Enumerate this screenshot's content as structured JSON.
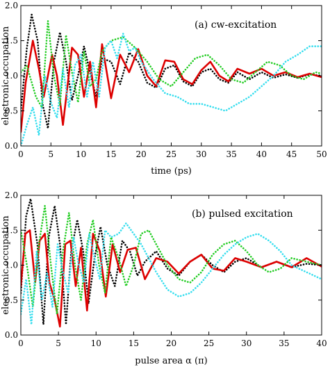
{
  "chart_data": [
    {
      "type": "line",
      "title": "(a) cw-excitation",
      "xlabel": "time (ps)",
      "ylabel": "electronic occupation",
      "xlim": [
        0,
        50
      ],
      "ylim": [
        0,
        2
      ],
      "xticks": [
        0,
        5,
        10,
        15,
        20,
        25,
        30,
        35,
        40,
        45,
        50
      ],
      "yticks": [
        0.0,
        0.5,
        1.0,
        1.5,
        2.0
      ],
      "ytick_labels": [
        "0.0",
        "0.5",
        "1.0",
        "1.5",
        "2.0"
      ],
      "grid": false,
      "legend": null,
      "series": [
        {
          "color": "#000000",
          "style": "dotted",
          "x": [
            0,
            1,
            1.8,
            2.8,
            3.6,
            4.5,
            5.5,
            6.5,
            7.5,
            8.5,
            9.5,
            10.5,
            11.5,
            12.5,
            13.5,
            15,
            16.5,
            18,
            19.5,
            21,
            22.5,
            24,
            25.5,
            27,
            28.5,
            30,
            31.5,
            33,
            34.5,
            36,
            38,
            40,
            42,
            44,
            46,
            48,
            50
          ],
          "y": [
            0.5,
            1.4,
            1.87,
            1.5,
            0.6,
            0.25,
            1.2,
            1.62,
            1.2,
            0.65,
            1.0,
            1.42,
            1.05,
            0.7,
            1.25,
            1.2,
            0.88,
            1.33,
            1.2,
            0.9,
            0.83,
            1.1,
            1.15,
            0.92,
            0.85,
            1.05,
            1.1,
            0.95,
            0.9,
            1.05,
            0.95,
            1.05,
            0.97,
            1.02,
            0.97,
            1.02,
            1.0
          ]
        },
        {
          "color": "#dd0000",
          "style": "solid",
          "x": [
            0,
            0.8,
            2,
            3,
            3.8,
            5.2,
            6,
            7,
            8.5,
            9.5,
            10.5,
            11.5,
            12.5,
            13.5,
            15,
            16.5,
            18,
            19.5,
            21,
            22.5,
            24,
            25.5,
            27,
            28.5,
            30,
            31.5,
            33,
            34.5,
            36,
            38,
            40,
            42,
            44,
            46,
            48,
            50
          ],
          "y": [
            0.2,
            0.9,
            1.5,
            1.1,
            0.7,
            1.3,
            1.0,
            0.3,
            1.4,
            1.3,
            0.7,
            1.2,
            0.55,
            1.45,
            0.68,
            1.3,
            1.05,
            1.38,
            1.0,
            0.85,
            1.22,
            1.2,
            0.95,
            0.88,
            1.08,
            1.2,
            1.0,
            0.92,
            1.1,
            1.03,
            1.1,
            1.0,
            1.05,
            0.98,
            1.03,
            0.98
          ]
        },
        {
          "color": "#22cc22",
          "style": "dotted",
          "x": [
            0,
            1,
            2.5,
            3.5,
            4.5,
            5.5,
            6.5,
            7.5,
            8.5,
            9.5,
            10.5,
            11.5,
            12.5,
            13.5,
            15,
            17,
            19,
            21,
            23,
            25,
            27,
            29,
            31,
            33,
            35,
            37,
            39,
            41,
            43,
            45,
            47,
            49,
            50
          ],
          "y": [
            1.05,
            1.14,
            0.7,
            0.55,
            1.78,
            1.0,
            0.58,
            1.58,
            1.05,
            0.62,
            1.35,
            0.85,
            0.95,
            1.35,
            1.5,
            1.55,
            1.4,
            1.2,
            0.95,
            0.85,
            1.05,
            1.25,
            1.3,
            1.15,
            0.95,
            0.9,
            1.05,
            1.2,
            1.15,
            1.0,
            0.95,
            1.05,
            1.03
          ]
        },
        {
          "color": "#33ddee",
          "style": "dotted",
          "x": [
            0,
            1,
            2,
            3,
            4,
            5,
            6,
            7,
            8,
            9,
            10,
            11,
            12,
            13,
            14,
            15,
            16,
            17,
            18,
            19,
            20,
            22,
            24,
            26,
            28,
            30,
            32,
            34,
            36,
            38,
            40,
            42,
            44,
            46,
            48,
            50
          ],
          "y": [
            0.0,
            0.3,
            0.55,
            0.15,
            1.0,
            0.62,
            0.4,
            1.1,
            0.55,
            1.15,
            1.3,
            0.7,
            1.2,
            0.7,
            1.4,
            1.5,
            1.25,
            1.6,
            1.35,
            1.4,
            1.2,
            0.95,
            0.75,
            0.7,
            0.6,
            0.6,
            0.55,
            0.5,
            0.6,
            0.7,
            0.85,
            1.0,
            1.2,
            1.3,
            1.42,
            1.42
          ]
        }
      ]
    },
    {
      "type": "line",
      "title": "(b) pulsed excitation",
      "xlabel": "pulse area α (π)",
      "ylabel": "electronic occupation",
      "xlim": [
        0,
        40
      ],
      "ylim": [
        0,
        2
      ],
      "xticks": [
        0,
        5,
        10,
        15,
        20,
        25,
        30,
        35,
        40
      ],
      "yticks": [
        0.0,
        0.5,
        1.0,
        1.5,
        2.0
      ],
      "ytick_labels": [
        "0.0",
        "0.5",
        "1.0",
        "1.5",
        "2.0"
      ],
      "grid": false,
      "legend": null,
      "series": [
        {
          "color": "#000000",
          "style": "dotted",
          "x": [
            0,
            0.7,
            1.3,
            2.2,
            3,
            3.7,
            4.5,
            5.2,
            6,
            6.7,
            7.5,
            8.3,
            9,
            9.8,
            10.6,
            11.5,
            12.5,
            13.5,
            14.5,
            15.5,
            16.5,
            18,
            19.5,
            21,
            22.5,
            24,
            25.5,
            27,
            28.5,
            30,
            32,
            34,
            36,
            38,
            40
          ],
          "y": [
            0.6,
            1.7,
            1.95,
            1.3,
            0.15,
            1.4,
            1.85,
            1.3,
            0.15,
            1.2,
            1.65,
            1.2,
            0.45,
            1.1,
            1.55,
            1.0,
            0.7,
            1.35,
            1.2,
            0.85,
            1.05,
            1.2,
            0.95,
            0.85,
            1.05,
            1.15,
            1.0,
            0.9,
            1.05,
            1.1,
            0.97,
            1.05,
            0.97,
            1.02,
            1.0
          ]
        },
        {
          "color": "#dd0000",
          "style": "solid",
          "x": [
            0,
            0.6,
            1.2,
            1.9,
            2.5,
            3.2,
            3.8,
            4.5,
            5.2,
            5.9,
            6.6,
            7.3,
            8,
            8.8,
            9.6,
            10.5,
            11.3,
            12.2,
            13.2,
            14.2,
            15.3,
            16.5,
            18,
            19.5,
            21,
            22.5,
            24,
            25.5,
            27,
            28.5,
            30,
            32,
            34,
            36,
            38,
            40
          ],
          "y": [
            0.7,
            1.45,
            1.5,
            0.75,
            1.35,
            1.45,
            0.75,
            0.5,
            0.12,
            1.3,
            1.35,
            0.7,
            1.25,
            0.35,
            1.45,
            1.2,
            0.55,
            1.3,
            0.9,
            1.22,
            1.25,
            0.8,
            1.1,
            1.05,
            0.88,
            1.05,
            1.15,
            0.95,
            0.92,
            1.1,
            1.05,
            0.97,
            1.05,
            0.97,
            1.1,
            0.98
          ]
        },
        {
          "color": "#22cc22",
          "style": "dotted",
          "x": [
            0,
            0.8,
            1.6,
            2.4,
            3.2,
            4,
            4.8,
            5.6,
            6.4,
            7.2,
            8,
            8.8,
            9.6,
            10.4,
            11.2,
            12,
            13,
            14,
            15,
            16,
            17,
            18,
            19.5,
            21,
            22.5,
            24,
            25.5,
            27,
            28.5,
            30,
            31.5,
            33,
            34.5,
            36,
            38,
            40
          ],
          "y": [
            1.5,
            1.0,
            0.4,
            1.3,
            1.85,
            1.0,
            0.3,
            1.2,
            1.75,
            1.0,
            0.5,
            1.3,
            1.65,
            1.0,
            0.6,
            1.4,
            1.1,
            0.7,
            1.0,
            1.45,
            1.5,
            1.3,
            1.0,
            0.8,
            0.75,
            0.9,
            1.15,
            1.3,
            1.35,
            1.2,
            1.0,
            0.9,
            0.95,
            1.1,
            1.05,
            1.0
          ]
        },
        {
          "color": "#33ddee",
          "style": "dotted",
          "x": [
            0,
            0.7,
            1.4,
            2.1,
            2.8,
            3.5,
            4.2,
            4.9,
            5.6,
            6.3,
            7,
            7.7,
            8.4,
            9.1,
            9.8,
            10.5,
            11.2,
            12,
            13,
            14,
            15,
            16,
            17,
            18,
            19.5,
            21,
            22.5,
            24,
            25.5,
            27,
            28.5,
            30,
            31.5,
            33,
            34.5,
            36,
            38,
            40
          ],
          "y": [
            0.3,
            0.8,
            0.15,
            1.2,
            0.5,
            0.9,
            0.4,
            1.3,
            0.9,
            0.6,
            1.4,
            1.0,
            0.75,
            1.45,
            1.1,
            0.8,
            1.5,
            1.4,
            1.45,
            1.6,
            1.45,
            1.3,
            1.1,
            0.9,
            0.65,
            0.55,
            0.6,
            0.75,
            0.95,
            1.15,
            1.3,
            1.4,
            1.45,
            1.35,
            1.2,
            1.0,
            0.9,
            0.8
          ]
        }
      ]
    }
  ]
}
